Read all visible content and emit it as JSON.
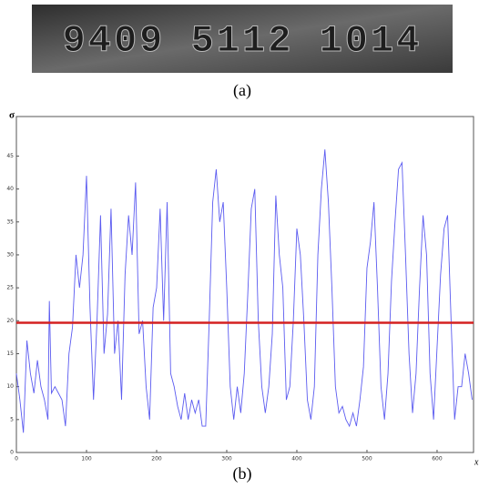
{
  "figure_a": {
    "digits": "9409 5112 1014",
    "caption": "(a)"
  },
  "chart_data": {
    "type": "line",
    "caption": "(b)",
    "y_label": "σ",
    "x_label": "x",
    "x": [
      0,
      5,
      10,
      15,
      20,
      25,
      30,
      35,
      40,
      45,
      47,
      50,
      55,
      60,
      65,
      70,
      75,
      80,
      85,
      90,
      95,
      100,
      105,
      110,
      115,
      120,
      125,
      130,
      135,
      140,
      145,
      150,
      155,
      160,
      165,
      170,
      175,
      180,
      185,
      190,
      195,
      200,
      205,
      210,
      215,
      220,
      225,
      230,
      235,
      240,
      245,
      250,
      255,
      260,
      265,
      270,
      275,
      280,
      285,
      290,
      295,
      300,
      305,
      310,
      315,
      320,
      325,
      330,
      335,
      340,
      345,
      350,
      355,
      360,
      365,
      370,
      375,
      380,
      385,
      390,
      395,
      400,
      405,
      410,
      415,
      420,
      425,
      430,
      435,
      440,
      445,
      450,
      455,
      460,
      465,
      470,
      475,
      480,
      485,
      490,
      495,
      500,
      505,
      510,
      515,
      520,
      525,
      530,
      535,
      540,
      545,
      550,
      555,
      560,
      565,
      570,
      575,
      580,
      585,
      590,
      595,
      600,
      605,
      610,
      615,
      620,
      625,
      630,
      635,
      640,
      645,
      650
    ],
    "series": [
      {
        "name": "σ",
        "color": "#5b5bf0",
        "values": [
          12,
          8,
          3,
          17,
          12,
          9,
          14,
          10,
          8,
          5,
          23,
          9,
          10,
          9,
          8,
          4,
          15,
          19,
          30,
          25,
          30,
          42,
          22,
          8,
          20,
          36,
          15,
          21,
          37,
          15,
          20,
          8,
          27,
          36,
          30,
          41,
          18,
          20,
          10,
          5,
          22,
          25,
          37,
          20,
          38,
          12,
          10,
          7,
          5,
          9,
          5,
          8,
          6,
          8,
          4,
          4,
          20,
          38,
          43,
          35,
          38,
          25,
          10,
          5,
          10,
          6,
          12,
          24,
          37,
          40,
          20,
          10,
          6,
          10,
          18,
          39,
          30,
          25,
          8,
          10,
          20,
          34,
          30,
          20,
          8,
          5,
          10,
          30,
          40,
          46,
          38,
          25,
          10,
          6,
          7,
          5,
          4,
          6,
          4,
          8,
          13,
          28,
          32,
          38,
          25,
          10,
          5,
          12,
          26,
          35,
          43,
          44,
          30,
          15,
          6,
          12,
          25,
          36,
          30,
          12,
          5,
          16,
          27,
          34,
          36,
          20,
          5,
          10,
          10,
          15,
          12,
          8
        ]
      }
    ],
    "threshold": {
      "value": 19.7,
      "color": "#d42020"
    },
    "xlim": [
      0,
      652
    ],
    "ylim": [
      0,
      51
    ],
    "xticks": [
      0,
      100,
      200,
      300,
      400,
      500,
      600
    ],
    "yticks": [
      0,
      5,
      10,
      15,
      20,
      25,
      30,
      35,
      40,
      45
    ]
  }
}
